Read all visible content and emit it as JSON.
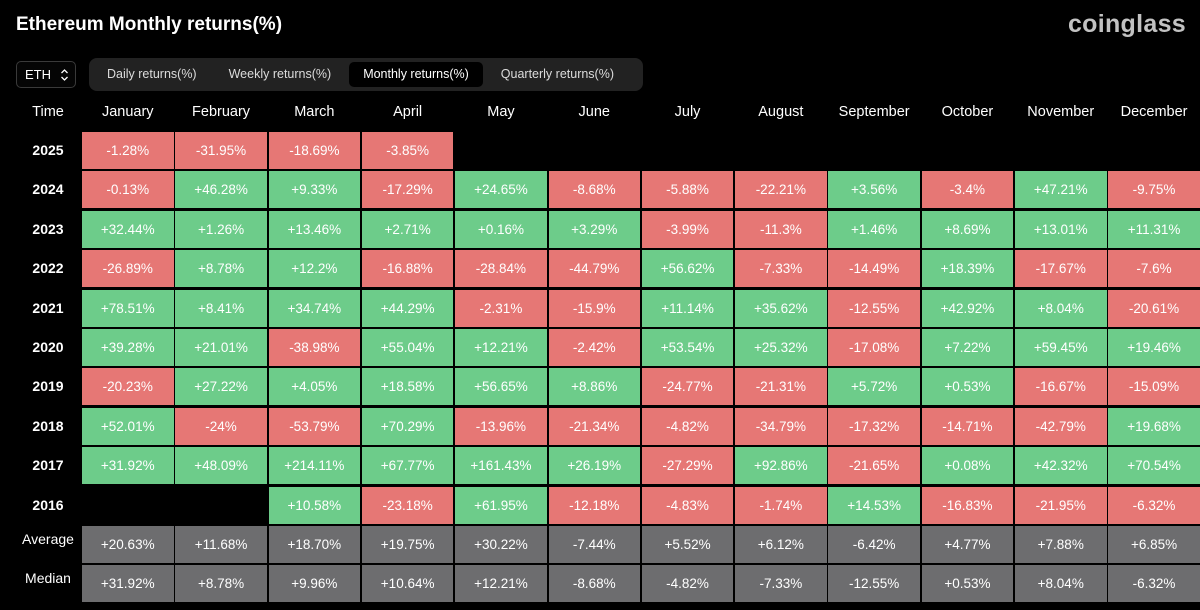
{
  "header": {
    "title": "Ethereum Monthly returns(%)",
    "logo": "coinglass"
  },
  "asset_select": {
    "value": "ETH",
    "icon": "chevron-up-down-icon"
  },
  "tabs": [
    {
      "label": "Daily returns(%)",
      "active": false
    },
    {
      "label": "Weekly returns(%)",
      "active": false
    },
    {
      "label": "Monthly returns(%)",
      "active": true
    },
    {
      "label": "Quarterly returns(%)",
      "active": false
    }
  ],
  "colors": {
    "positive": "#6dcc8a",
    "negative": "#e67775",
    "stat": "#6d6d6f",
    "background": "#000000"
  },
  "table": {
    "corner_label": "Time",
    "months": [
      "January",
      "February",
      "March",
      "April",
      "May",
      "June",
      "July",
      "August",
      "September",
      "October",
      "November",
      "December"
    ],
    "rows": [
      {
        "year": "2025",
        "values": [
          "-1.28%",
          "-31.95%",
          "-18.69%",
          "-3.85%",
          "",
          "",
          "",
          "",
          "",
          "",
          "",
          ""
        ]
      },
      {
        "year": "2024",
        "values": [
          "-0.13%",
          "+46.28%",
          "+9.33%",
          "-17.29%",
          "+24.65%",
          "-8.68%",
          "-5.88%",
          "-22.21%",
          "+3.56%",
          "-3.4%",
          "+47.21%",
          "-9.75%"
        ]
      },
      {
        "year": "2023",
        "values": [
          "+32.44%",
          "+1.26%",
          "+13.46%",
          "+2.71%",
          "+0.16%",
          "+3.29%",
          "-3.99%",
          "-11.3%",
          "+1.46%",
          "+8.69%",
          "+13.01%",
          "+11.31%"
        ]
      },
      {
        "year": "2022",
        "values": [
          "-26.89%",
          "+8.78%",
          "+12.2%",
          "-16.88%",
          "-28.84%",
          "-44.79%",
          "+56.62%",
          "-7.33%",
          "-14.49%",
          "+18.39%",
          "-17.67%",
          "-7.6%"
        ]
      },
      {
        "year": "2021",
        "values": [
          "+78.51%",
          "+8.41%",
          "+34.74%",
          "+44.29%",
          "-2.31%",
          "-15.9%",
          "+11.14%",
          "+35.62%",
          "-12.55%",
          "+42.92%",
          "+8.04%",
          "-20.61%"
        ]
      },
      {
        "year": "2020",
        "values": [
          "+39.28%",
          "+21.01%",
          "-38.98%",
          "+55.04%",
          "+12.21%",
          "-2.42%",
          "+53.54%",
          "+25.32%",
          "-17.08%",
          "+7.22%",
          "+59.45%",
          "+19.46%"
        ]
      },
      {
        "year": "2019",
        "values": [
          "-20.23%",
          "+27.22%",
          "+4.05%",
          "+18.58%",
          "+56.65%",
          "+8.86%",
          "-24.77%",
          "-21.31%",
          "+5.72%",
          "+0.53%",
          "-16.67%",
          "-15.09%"
        ]
      },
      {
        "year": "2018",
        "values": [
          "+52.01%",
          "-24%",
          "-53.79%",
          "+70.29%",
          "-13.96%",
          "-21.34%",
          "-4.82%",
          "-34.79%",
          "-17.32%",
          "-14.71%",
          "-42.79%",
          "+19.68%"
        ]
      },
      {
        "year": "2017",
        "values": [
          "+31.92%",
          "+48.09%",
          "+214.11%",
          "+67.77%",
          "+161.43%",
          "+26.19%",
          "-27.29%",
          "+92.86%",
          "-21.65%",
          "+0.08%",
          "+42.32%",
          "+70.54%"
        ]
      },
      {
        "year": "2016",
        "values": [
          "",
          "",
          "+10.58%",
          "-23.18%",
          "+61.95%",
          "-12.18%",
          "-4.83%",
          "-1.74%",
          "+14.53%",
          "-16.83%",
          "-21.95%",
          "-6.32%"
        ]
      }
    ],
    "stats": [
      {
        "label": "Average",
        "values": [
          "+20.63%",
          "+11.68%",
          "+18.70%",
          "+19.75%",
          "+30.22%",
          "-7.44%",
          "+5.52%",
          "+6.12%",
          "-6.42%",
          "+4.77%",
          "+7.88%",
          "+6.85%"
        ]
      },
      {
        "label": "Median",
        "values": [
          "+31.92%",
          "+8.78%",
          "+9.96%",
          "+10.64%",
          "+12.21%",
          "-8.68%",
          "-4.82%",
          "-7.33%",
          "-12.55%",
          "+0.53%",
          "+8.04%",
          "-6.32%"
        ]
      }
    ]
  }
}
